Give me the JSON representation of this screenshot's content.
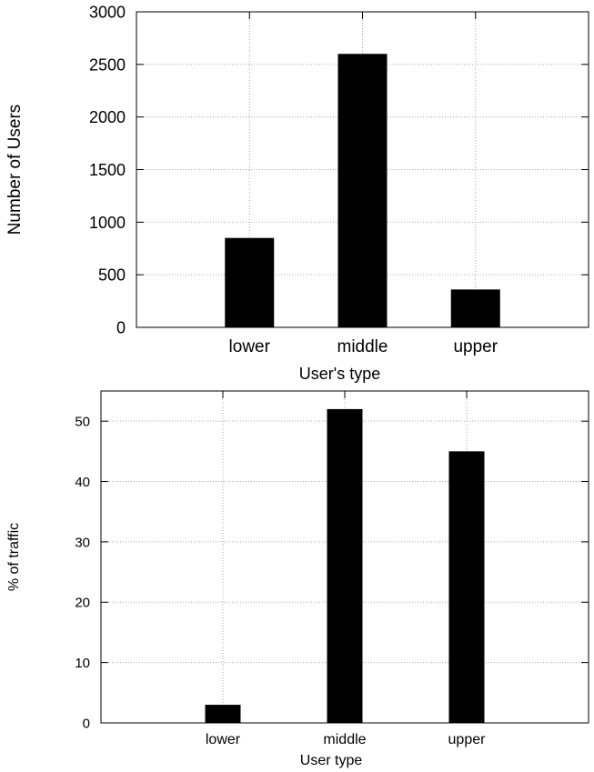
{
  "chart_data": [
    {
      "type": "bar",
      "categories": [
        "lower",
        "middle",
        "upper"
      ],
      "values": [
        850,
        2600,
        360
      ],
      "xlabel": "User's type",
      "ylabel": "Number of Users",
      "ylim": [
        0,
        3000
      ],
      "yticks": [
        "0",
        "500",
        "1000",
        "1500",
        "2000",
        "2500",
        "3000"
      ],
      "ytick_values": [
        0,
        500,
        1000,
        1500,
        2000,
        2500,
        3000
      ],
      "grid": true,
      "bar_color": "#000000",
      "grid_color": "#aaaaaa"
    },
    {
      "type": "bar",
      "categories": [
        "lower",
        "middle",
        "upper"
      ],
      "values": [
        3,
        52,
        45
      ],
      "xlabel": "User type",
      "ylabel": "% of traffic",
      "ylim": [
        0,
        55
      ],
      "yticks": [
        "0",
        "10",
        "20",
        "30",
        "40",
        "50"
      ],
      "ytick_values": [
        0,
        10,
        20,
        30,
        40,
        50
      ],
      "grid": true,
      "bar_color": "#000000",
      "grid_color": "#aaaaaa"
    }
  ]
}
